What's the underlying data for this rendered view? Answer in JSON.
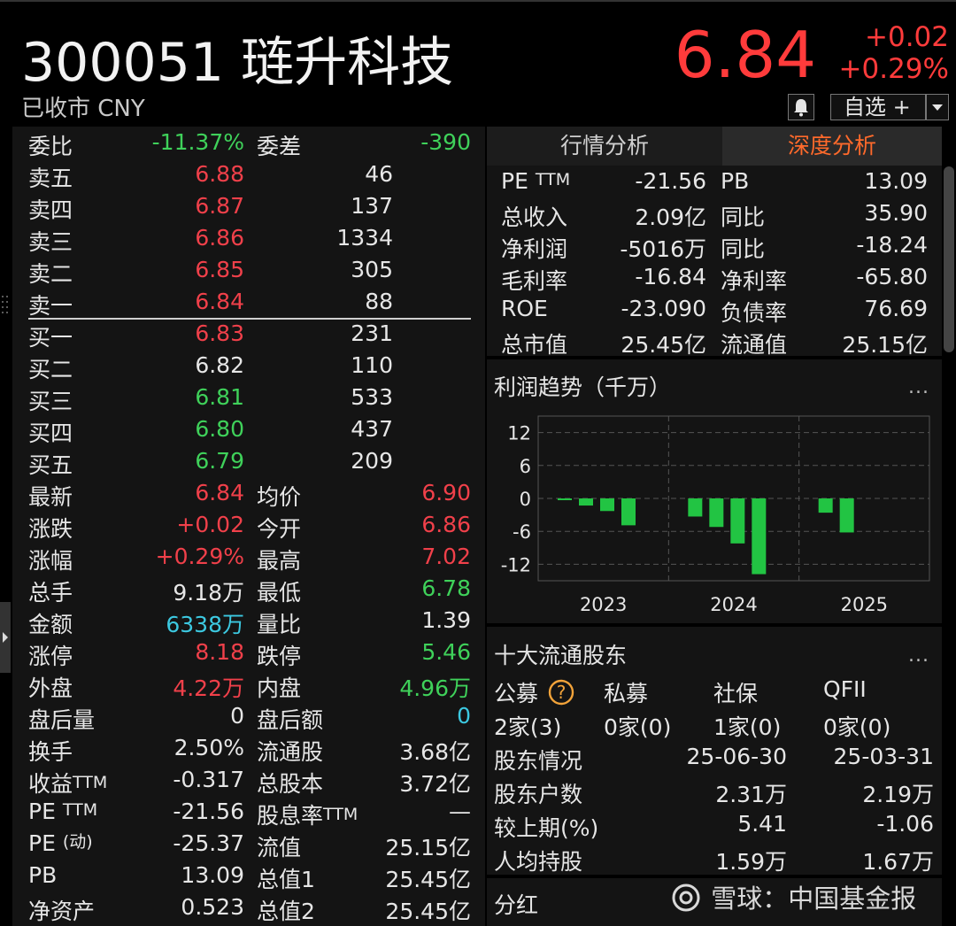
{
  "header": {
    "code_name": "300051 琏升科技",
    "status": "已收市 CNY",
    "price": "6.84",
    "change": "+0.02",
    "change_pct": "+0.29%",
    "watchlist_label": "自选 +"
  },
  "order_book": {
    "weibi_label": "委比",
    "weibi": "-11.37%",
    "weicha_label": "委差",
    "weicha": "-390",
    "asks": [
      {
        "label": "卖五",
        "price": "6.88",
        "vol": "46"
      },
      {
        "label": "卖四",
        "price": "6.87",
        "vol": "137"
      },
      {
        "label": "卖三",
        "price": "6.86",
        "vol": "1334"
      },
      {
        "label": "卖二",
        "price": "6.85",
        "vol": "305"
      },
      {
        "label": "卖一",
        "price": "6.84",
        "vol": "88"
      }
    ],
    "bids": [
      {
        "label": "买一",
        "price": "6.83",
        "vol": "231"
      },
      {
        "label": "买二",
        "price": "6.82",
        "vol": "110"
      },
      {
        "label": "买三",
        "price": "6.81",
        "vol": "533"
      },
      {
        "label": "买四",
        "price": "6.80",
        "vol": "437"
      },
      {
        "label": "买五",
        "price": "6.79",
        "vol": "209"
      }
    ]
  },
  "stats": [
    [
      "最新",
      "6.84",
      "均价",
      "6.90"
    ],
    [
      "涨跌",
      "+0.02",
      "今开",
      "6.86"
    ],
    [
      "涨幅",
      "+0.29%",
      "最高",
      "7.02"
    ],
    [
      "总手",
      "9.18万",
      "最低",
      "6.78"
    ],
    [
      "金额",
      "6338万",
      "量比",
      "1.39"
    ],
    [
      "涨停",
      "8.18",
      "跌停",
      "5.46"
    ],
    [
      "外盘",
      "4.22万",
      "内盘",
      "4.96万"
    ],
    [
      "盘后量",
      "0",
      "盘后额",
      "0"
    ],
    [
      "换手",
      "2.50%",
      "流通股",
      "3.68亿"
    ],
    [
      "收益TTM",
      "-0.317",
      "总股本",
      "3.72亿"
    ],
    [
      "PE TTM",
      "-21.56",
      "股息率TTM",
      "—"
    ],
    [
      "PE (动)",
      "-25.37",
      "流值",
      "25.15亿"
    ],
    [
      "PB",
      "13.09",
      "总值1",
      "25.45亿"
    ],
    [
      "净资产",
      "0.523",
      "总值2",
      "25.45亿"
    ]
  ],
  "tabs": {
    "market": "行情分析",
    "depth": "深度分析"
  },
  "fundamentals": [
    [
      "PE TTM",
      "-21.56",
      "PB",
      "13.09"
    ],
    [
      "总收入",
      "2.09亿",
      "同比",
      "35.90"
    ],
    [
      "净利润",
      "-5016万",
      "同比",
      "-18.24"
    ],
    [
      "毛利率",
      "-16.84",
      "净利率",
      "-65.80"
    ],
    [
      "ROE",
      "-23.090",
      "负债率",
      "76.69"
    ],
    [
      "总市值",
      "25.45亿",
      "流通值",
      "25.15亿"
    ]
  ],
  "profit_title": "利润趋势（千万）",
  "more": "...",
  "chart_data": {
    "type": "bar",
    "title": "利润趋势（千万）",
    "xlabel": "",
    "ylabel": "",
    "ylim": [
      -15,
      15
    ],
    "yticks": [
      "12",
      "6",
      "0",
      "-6",
      "-12"
    ],
    "x_tick_labels": [
      "2023",
      "2024",
      "2025"
    ],
    "values": [
      -0.3,
      -1.3,
      -2.3,
      -4.9,
      -3.3,
      -5.2,
      -8.2,
      -13.8,
      -2.6,
      -6.2
    ],
    "color": "#22c443"
  },
  "shareholders": {
    "title": "十大流通股东",
    "types": [
      "公募",
      "私募",
      "社保",
      "QFII"
    ],
    "counts": [
      "2家(3)",
      "0家(0)",
      "1家(0)",
      "0家(0)"
    ],
    "rows": [
      [
        "股东情况",
        "25-06-30",
        "25-03-31"
      ],
      [
        "股东户数",
        "2.31万",
        "2.19万"
      ],
      [
        "较上期(%)",
        "5.41",
        "-1.06"
      ],
      [
        "人均持股",
        "1.59万",
        "1.67万"
      ]
    ]
  },
  "dividend_title": "分红",
  "watermark": "雪球：中国基金报"
}
